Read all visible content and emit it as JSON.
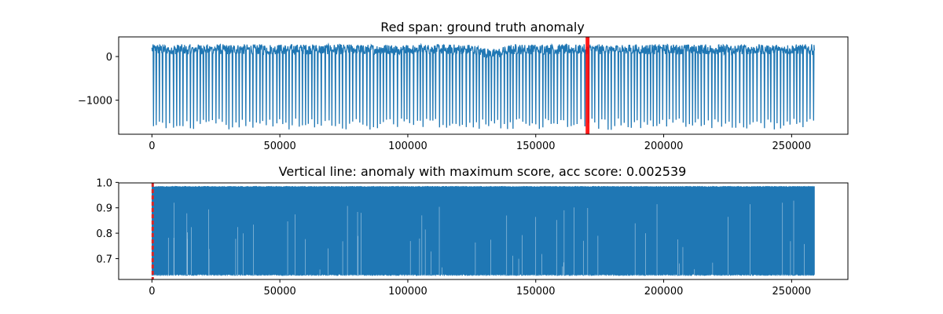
{
  "chart_data": [
    {
      "type": "line",
      "title": "Red span: ground truth anomaly",
      "xlim": [
        -13000,
        272000
      ],
      "ylim": [
        -1780,
        450
      ],
      "x_ticks": [
        0,
        50000,
        100000,
        150000,
        200000,
        250000
      ],
      "x_tick_labels": [
        "0",
        "50000",
        "100000",
        "150000",
        "200000",
        "250000"
      ],
      "y_ticks": [
        0,
        -1000
      ],
      "y_tick_labels": [
        "0",
        "−1000"
      ],
      "series": [
        {
          "color": "#1f77b4",
          "x_range": [
            0,
            259000
          ],
          "baseline_band": [
            50,
            280
          ],
          "spike_min": [
            -1420,
            -1680
          ],
          "dip_near_x": 133000
        }
      ],
      "anomaly_span": {
        "x_start": 169500,
        "x_end": 171000,
        "color": "#ff0000"
      }
    },
    {
      "type": "line",
      "title": "Vertical line: anomaly with maximum score, acc score: 0.002539",
      "xlim": [
        -13000,
        272000
      ],
      "ylim": [
        0.618,
        0.998
      ],
      "x_ticks": [
        0,
        50000,
        100000,
        150000,
        200000,
        250000
      ],
      "x_tick_labels": [
        "0",
        "50000",
        "100000",
        "150000",
        "200000",
        "250000"
      ],
      "y_ticks": [
        0.7,
        0.8,
        0.9,
        1.0
      ],
      "y_tick_labels": [
        "0.7",
        "0.8",
        "0.9",
        "1.0"
      ],
      "series": [
        {
          "color": "#1f77b4",
          "x_range": [
            0,
            259000
          ],
          "value_band": [
            0.632,
            0.986
          ]
        }
      ],
      "max_score_line": {
        "x": 300,
        "color": "#d62728",
        "style": "dashed"
      }
    }
  ]
}
